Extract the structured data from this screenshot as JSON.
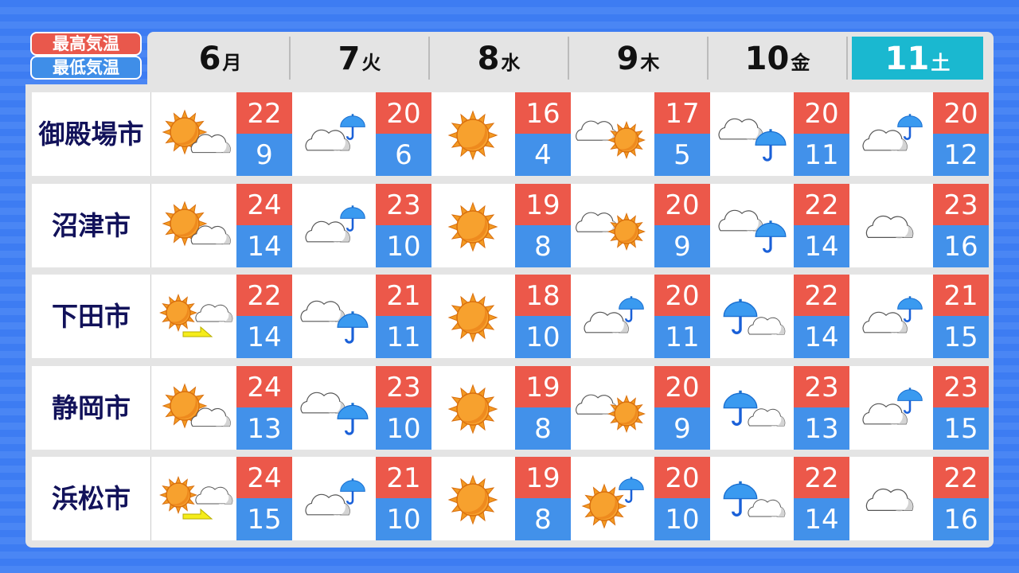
{
  "legend": {
    "max_label": "最高気温",
    "min_label": "最低気温",
    "max_color": "#ec584a",
    "min_color": "#4291ea"
  },
  "days": [
    {
      "num": "6",
      "wd": "月"
    },
    {
      "num": "7",
      "wd": "火"
    },
    {
      "num": "8",
      "wd": "水"
    },
    {
      "num": "9",
      "wd": "木"
    },
    {
      "num": "10",
      "wd": "金"
    },
    {
      "num": "11",
      "wd": "土",
      "highlight": true
    }
  ],
  "highlight_color": "#1ab8d0",
  "cities": [
    {
      "name": "御殿場市",
      "days": [
        {
          "icon": "sun-cloud",
          "max": "22",
          "min": "9"
        },
        {
          "icon": "cloud-umbrella",
          "max": "20",
          "min": "6"
        },
        {
          "icon": "sun",
          "max": "16",
          "min": "4"
        },
        {
          "icon": "cloud-sun",
          "max": "17",
          "min": "5"
        },
        {
          "icon": "cloud-umbrella-large",
          "max": "20",
          "min": "11"
        },
        {
          "icon": "cloud-umbrella",
          "max": "20",
          "min": "12"
        }
      ]
    },
    {
      "name": "沼津市",
      "days": [
        {
          "icon": "sun-cloud",
          "max": "24",
          "min": "14"
        },
        {
          "icon": "cloud-umbrella",
          "max": "23",
          "min": "10"
        },
        {
          "icon": "sun",
          "max": "19",
          "min": "8"
        },
        {
          "icon": "cloud-sun",
          "max": "20",
          "min": "9"
        },
        {
          "icon": "cloud-umbrella-large",
          "max": "22",
          "min": "14"
        },
        {
          "icon": "cloud",
          "max": "23",
          "min": "16"
        }
      ]
    },
    {
      "name": "下田市",
      "days": [
        {
          "icon": "sun-then-cloud",
          "max": "22",
          "min": "14"
        },
        {
          "icon": "cloud-umbrella-large",
          "max": "21",
          "min": "11"
        },
        {
          "icon": "sun",
          "max": "18",
          "min": "10"
        },
        {
          "icon": "cloud-umbrella",
          "max": "20",
          "min": "11"
        },
        {
          "icon": "umbrella-cloud",
          "max": "22",
          "min": "14"
        },
        {
          "icon": "cloud-umbrella",
          "max": "21",
          "min": "15"
        }
      ]
    },
    {
      "name": "静岡市",
      "days": [
        {
          "icon": "sun-cloud",
          "max": "24",
          "min": "13"
        },
        {
          "icon": "cloud-umbrella-large",
          "max": "23",
          "min": "10"
        },
        {
          "icon": "sun",
          "max": "19",
          "min": "8"
        },
        {
          "icon": "cloud-sun",
          "max": "20",
          "min": "9"
        },
        {
          "icon": "umbrella-cloud",
          "max": "23",
          "min": "13"
        },
        {
          "icon": "cloud-umbrella",
          "max": "23",
          "min": "15"
        }
      ]
    },
    {
      "name": "浜松市",
      "days": [
        {
          "icon": "sun-then-cloud",
          "max": "24",
          "min": "15"
        },
        {
          "icon": "cloud-umbrella",
          "max": "21",
          "min": "10"
        },
        {
          "icon": "sun",
          "max": "19",
          "min": "8"
        },
        {
          "icon": "sun-umbrella",
          "max": "20",
          "min": "10"
        },
        {
          "icon": "umbrella-cloud",
          "max": "22",
          "min": "14"
        },
        {
          "icon": "cloud",
          "max": "22",
          "min": "16"
        }
      ]
    }
  ]
}
